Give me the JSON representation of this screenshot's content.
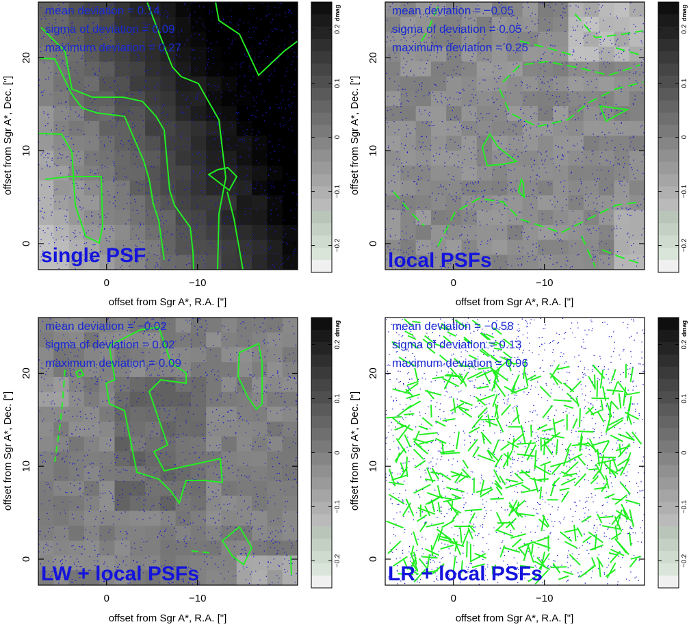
{
  "colors": {
    "contour": "#22ee22",
    "stars": "#1a1acc",
    "annotation": "#1a2ad0",
    "panel_label": "#1414dd"
  },
  "colorbar": {
    "title": "dmag",
    "ticks": [
      {
        "value": 0.2,
        "label": "0.2"
      },
      {
        "value": 0.1,
        "label": "0.1"
      },
      {
        "value": 0,
        "label": "0"
      },
      {
        "value": -0.1,
        "label": "−0.1"
      },
      {
        "value": -0.2,
        "label": "−0.2"
      }
    ],
    "range": [
      -0.25,
      0.25
    ]
  },
  "chart_data": [
    {
      "type": "heatmap",
      "label": "single PSF",
      "xlabel": "offset from Sgr A*, R.A. [\"]",
      "ylabel": "offset from Sgr A*, Dec. [\"]",
      "x_ticks": [
        {
          "value": 0,
          "label": "0"
        },
        {
          "value": -10,
          "label": "−10"
        }
      ],
      "y_ticks": [
        {
          "value": 0,
          "label": "0"
        },
        {
          "value": 10,
          "label": "10"
        },
        {
          "value": 20,
          "label": "20"
        }
      ],
      "xlim": [
        7.5,
        -21
      ],
      "ylim": [
        -2.8,
        26
      ],
      "stats": [
        "mean deviation  = 0.14",
        "sigma of deviation = 0.09",
        "maximum  deviation  = 0.27"
      ],
      "contours": "solid"
    },
    {
      "type": "heatmap",
      "label": "local PSFs",
      "xlabel": "offset from Sgr A*, R.A. [\"]",
      "ylabel": "offset from Sgr A*, Dec. [\"]",
      "x_ticks": [
        {
          "value": 0,
          "label": "0"
        },
        {
          "value": -10,
          "label": "−10"
        }
      ],
      "y_ticks": [
        {
          "value": 0,
          "label": "0"
        },
        {
          "value": 10,
          "label": "10"
        },
        {
          "value": 20,
          "label": "20"
        }
      ],
      "xlim": [
        7.5,
        -21
      ],
      "ylim": [
        -2.8,
        26
      ],
      "stats": [
        "mean deviation  = −0.05",
        "sigma of deviation = 0.05",
        "maximum  deviation  = 0.25"
      ],
      "contours": "dashed"
    },
    {
      "type": "heatmap",
      "label": "LW + local PSFs",
      "xlabel": "offset from Sgr A*, R.A. [\"]",
      "ylabel": "offset from Sgr A*, Dec. [\"]",
      "x_ticks": [
        {
          "value": 0,
          "label": "0"
        },
        {
          "value": -10,
          "label": "−10"
        }
      ],
      "y_ticks": [
        {
          "value": 0,
          "label": "0"
        },
        {
          "value": 10,
          "label": "10"
        },
        {
          "value": 20,
          "label": "20"
        }
      ],
      "xlim": [
        7.5,
        -21
      ],
      "ylim": [
        -2.8,
        26
      ],
      "stats": [
        "mean deviation  = −0.02",
        "sigma of deviation = 0.02",
        "maximum  deviation  = 0.09"
      ],
      "contours": "mixed"
    },
    {
      "type": "heatmap",
      "label": "LR + local PSFs",
      "xlabel": "offset from Sgr A*, R.A. [\"]",
      "ylabel": "offset from Sgr A*, Dec. [\"]",
      "x_ticks": [
        {
          "value": 0,
          "label": "0"
        },
        {
          "value": -10,
          "label": "−10"
        }
      ],
      "y_ticks": [
        {
          "value": 0,
          "label": "0"
        },
        {
          "value": 10,
          "label": "10"
        },
        {
          "value": 20,
          "label": "20"
        }
      ],
      "xlim": [
        7.5,
        -21
      ],
      "ylim": [
        -2.8,
        26
      ],
      "stats": [
        "mean deviation  = −0.58",
        "sigma of deviation = 0.13",
        "maximum  deviation  = 0.96"
      ],
      "contours": "dashed-dense"
    }
  ]
}
